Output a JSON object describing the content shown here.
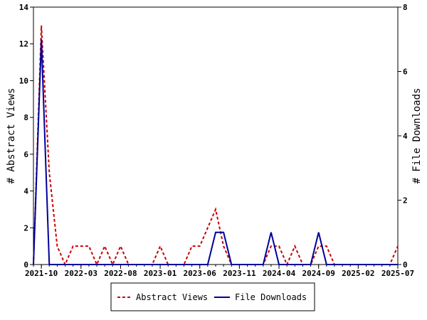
{
  "chart_data": {
    "type": "line",
    "xlabel": "",
    "y_left_label": "# Abstract Views",
    "y_right_label": "# File Downloads",
    "y_left_range": [
      0,
      14
    ],
    "y_right_range": [
      0,
      8
    ],
    "y_left_ticks": [
      "0",
      "2",
      "4",
      "6",
      "8",
      "10",
      "12",
      "14"
    ],
    "y_right_ticks": [
      "0",
      "2",
      "4",
      "6",
      "8"
    ],
    "x_tick_labels": [
      "2021-10",
      "2022-03",
      "2022-08",
      "2023-01",
      "2023-06",
      "2023-11",
      "2024-04",
      "2024-09",
      "2025-02",
      "2025-07"
    ],
    "x": [
      "2021-09",
      "2021-10",
      "2021-11",
      "2021-12",
      "2022-01",
      "2022-02",
      "2022-03",
      "2022-04",
      "2022-05",
      "2022-06",
      "2022-07",
      "2022-08",
      "2022-09",
      "2022-10",
      "2022-11",
      "2022-12",
      "2023-01",
      "2023-02",
      "2023-03",
      "2023-04",
      "2023-05",
      "2023-06",
      "2023-07",
      "2023-08",
      "2023-09",
      "2023-10",
      "2023-11",
      "2023-12",
      "2024-01",
      "2024-02",
      "2024-03",
      "2024-04",
      "2024-05",
      "2024-06",
      "2024-07",
      "2024-08",
      "2024-09",
      "2024-10",
      "2024-11",
      "2024-12",
      "2025-01",
      "2025-02",
      "2025-03",
      "2025-04",
      "2025-05",
      "2025-06",
      "2025-07"
    ],
    "series": [
      {
        "name": "Abstract Views",
        "axis": "left",
        "color": "#cc0000",
        "dash": "dashed",
        "values": [
          0,
          13,
          5,
          1,
          0,
          1,
          1,
          1,
          0,
          1,
          0,
          1,
          0,
          0,
          0,
          0,
          1,
          0,
          0,
          0,
          1,
          1,
          2,
          3,
          1,
          0,
          0,
          0,
          0,
          0,
          1,
          1,
          0,
          1,
          0,
          0,
          1,
          1,
          0,
          0,
          0,
          0,
          0,
          0,
          0,
          0,
          1
        ]
      },
      {
        "name": "File Downloads",
        "axis": "right",
        "color": "#000099",
        "dash": "solid",
        "values": [
          0,
          7,
          0,
          0,
          0,
          0,
          0,
          0,
          0,
          0,
          0,
          0,
          0,
          0,
          0,
          0,
          0,
          0,
          0,
          0,
          0,
          0,
          0,
          1,
          1,
          0,
          0,
          0,
          0,
          0,
          1,
          0,
          0,
          0,
          0,
          0,
          1,
          0,
          0,
          0,
          0,
          0,
          0,
          0,
          0,
          0,
          0
        ]
      }
    ],
    "legend_position": "bottom-center",
    "grid": false
  }
}
